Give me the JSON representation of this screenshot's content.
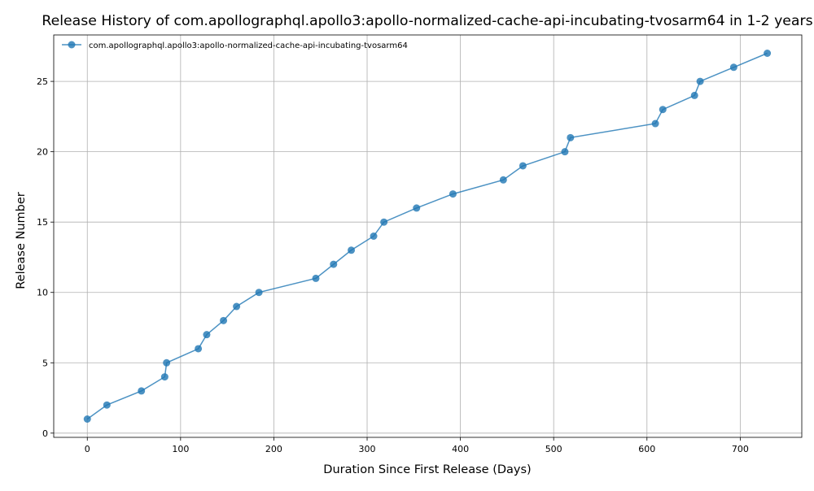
{
  "chart_data": {
    "type": "line",
    "title": "Release History of com.apollographql.apollo3:apollo-normalized-cache-api-incubating-tvosarm64 in 1-2 years",
    "xlabel": "Duration Since First Release (Days)",
    "ylabel": "Release Number",
    "xlim": [
      -36,
      766
    ],
    "ylim": [
      -0.3,
      28.3
    ],
    "xticks": [
      0,
      100,
      200,
      300,
      400,
      500,
      600,
      700
    ],
    "yticks": [
      0,
      5,
      10,
      15,
      20,
      25
    ],
    "grid": true,
    "legend_position": "top-left",
    "series": [
      {
        "name": "com.apollographql.apollo3:apollo-normalized-cache-api-incubating-tvosarm64",
        "color": "#1f77b4",
        "marker": "circle",
        "points": [
          [
            0,
            1
          ],
          [
            21,
            2
          ],
          [
            58,
            3
          ],
          [
            83,
            4
          ],
          [
            85,
            5
          ],
          [
            119,
            6
          ],
          [
            128,
            7
          ],
          [
            146,
            8
          ],
          [
            160,
            9
          ],
          [
            184,
            10
          ],
          [
            245,
            11
          ],
          [
            264,
            12
          ],
          [
            283,
            13
          ],
          [
            307,
            14
          ],
          [
            318,
            15
          ],
          [
            353,
            16
          ],
          [
            392,
            17
          ],
          [
            446,
            18
          ],
          [
            467,
            19
          ],
          [
            512,
            20
          ],
          [
            518,
            21
          ],
          [
            609,
            22
          ],
          [
            617,
            23
          ],
          [
            651,
            24
          ],
          [
            657,
            25
          ],
          [
            693,
            26
          ],
          [
            729,
            27
          ]
        ]
      }
    ]
  }
}
